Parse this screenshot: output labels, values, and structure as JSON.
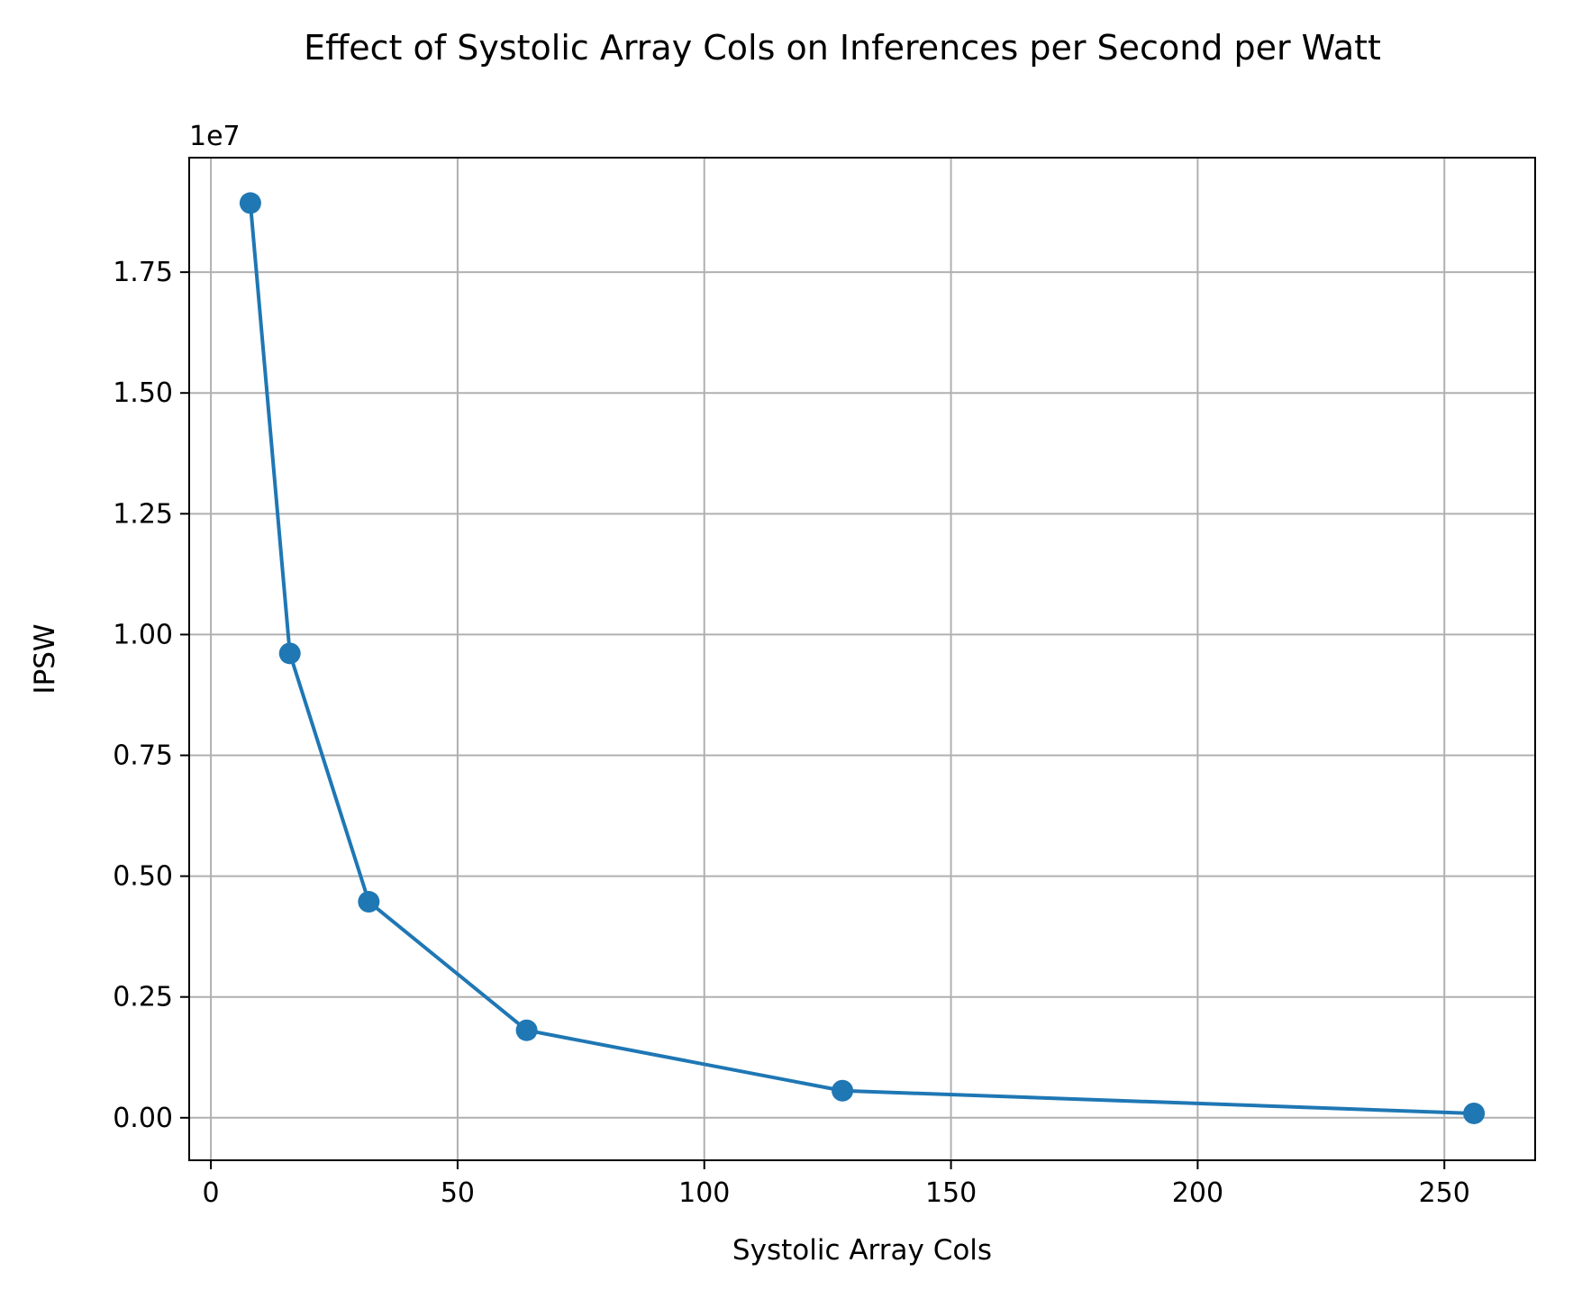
{
  "chart_data": {
    "type": "line",
    "title": "Effect of Systolic Array Cols on Inferences per Second per Watt",
    "xlabel": "Systolic Array Cols",
    "ylabel": "IPSW",
    "y_offset_label": "1e7",
    "xlim": [
      -4.4,
      268.4
    ],
    "ylim": [
      -0.088,
      1.987
    ],
    "y_scale_factor": 10000000,
    "x_ticks": [
      0,
      50,
      100,
      150,
      200,
      250
    ],
    "x_tick_labels": [
      "0",
      "50",
      "100",
      "150",
      "200",
      "250"
    ],
    "y_ticks": [
      0.0,
      0.25,
      0.5,
      0.75,
      1.0,
      1.25,
      1.5,
      1.75
    ],
    "y_tick_labels": [
      "0.00",
      "0.25",
      "0.50",
      "0.75",
      "1.00",
      "1.25",
      "1.50",
      "1.75"
    ],
    "grid": true,
    "series": [
      {
        "x": [
          8,
          16,
          32,
          64,
          128,
          256
        ],
        "y": [
          1.893,
          0.961,
          0.447,
          0.181,
          0.056,
          0.009
        ],
        "marker": "circle",
        "color": "#1f77b4"
      }
    ]
  }
}
